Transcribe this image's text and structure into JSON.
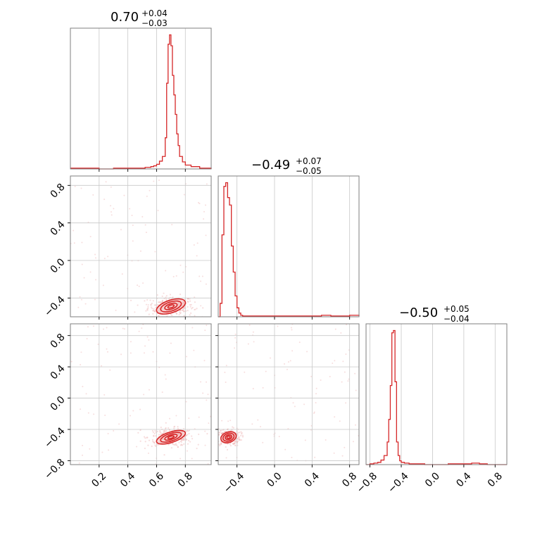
{
  "chart_data": {
    "type": "corner",
    "color": "#d62728",
    "parameters": [
      {
        "median": "0.70",
        "plus": "+0.04",
        "minus": "−0.03",
        "range": [
          0.0,
          0.98
        ]
      },
      {
        "median": "−0.49",
        "plus": "+0.07",
        "minus": "−0.05",
        "range": [
          -0.6,
          0.9
        ]
      },
      {
        "median": "−0.50",
        "plus": "+0.05",
        "minus": "−0.04",
        "range": [
          -0.85,
          0.95
        ]
      }
    ],
    "grid": true,
    "histograms": [
      {
        "x": [
          0.0,
          0.1,
          0.2,
          0.3,
          0.4,
          0.48,
          0.52,
          0.56,
          0.58,
          0.6,
          0.62,
          0.64,
          0.66,
          0.67,
          0.68,
          0.69,
          0.7,
          0.71,
          0.72,
          0.73,
          0.74,
          0.75,
          0.76,
          0.78,
          0.8,
          0.84,
          0.9,
          0.98
        ],
        "values": [
          1,
          1,
          0,
          1,
          1,
          1,
          2,
          3,
          4,
          6,
          10,
          16,
          40,
          110,
          160,
          172,
          158,
          120,
          95,
          70,
          45,
          30,
          16,
          9,
          5,
          3,
          1,
          0
        ]
      },
      {
        "x": [
          -0.6,
          -0.58,
          -0.56,
          -0.54,
          -0.52,
          -0.5,
          -0.48,
          -0.46,
          -0.44,
          -0.42,
          -0.4,
          -0.38,
          -0.36,
          -0.34,
          -0.3,
          -0.2,
          -0.1,
          0.0,
          0.1,
          0.2,
          0.3,
          0.4,
          0.5,
          0.6,
          0.7,
          0.8,
          0.9
        ],
        "values": [
          0,
          18,
          110,
          175,
          180,
          160,
          150,
          95,
          60,
          28,
          12,
          5,
          2,
          1,
          1,
          1,
          1,
          1,
          1,
          1,
          1,
          1,
          2,
          1,
          1,
          2,
          1
        ]
      },
      {
        "x": [
          -0.85,
          -0.8,
          -0.75,
          -0.7,
          -0.66,
          -0.62,
          -0.58,
          -0.56,
          -0.54,
          -0.52,
          -0.5,
          -0.48,
          -0.46,
          -0.44,
          -0.42,
          -0.4,
          -0.36,
          -0.3,
          -0.2,
          -0.1,
          0.0,
          0.1,
          0.2,
          0.3,
          0.4,
          0.5,
          0.6,
          0.7,
          0.8
        ],
        "values": [
          0,
          1,
          2,
          3,
          6,
          12,
          30,
          60,
          105,
          175,
          178,
          110,
          30,
          12,
          5,
          3,
          2,
          1,
          1,
          0,
          0,
          0,
          1,
          1,
          1,
          2,
          1,
          0,
          0
        ]
      }
    ],
    "density_panels": [
      {
        "x_param": 0,
        "y_param": 1,
        "center": [
          0.7,
          -0.49
        ],
        "spread": [
          0.05,
          0.04
        ]
      },
      {
        "x_param": 0,
        "y_param": 2,
        "center": [
          0.7,
          -0.5
        ],
        "spread": [
          0.05,
          0.04
        ]
      },
      {
        "x_param": 1,
        "y_param": 2,
        "center": [
          -0.49,
          -0.5
        ],
        "spread": [
          0.04,
          0.04
        ]
      }
    ],
    "ticks": {
      "x_param0": [
        "0.2",
        "0.4",
        "0.6",
        "0.8"
      ],
      "x_param1": [
        "−0.4",
        "0.0",
        "0.4",
        "0.8"
      ],
      "x_param2": [
        "−0.8",
        "−0.4",
        "0.0",
        "0.4",
        "0.8"
      ],
      "y_row1": [
        "0.8",
        "0.4",
        "0.0",
        "−0.4"
      ],
      "y_row2": [
        "0.8",
        "0.4",
        "0.0",
        "−0.4",
        "−0.8"
      ]
    }
  }
}
